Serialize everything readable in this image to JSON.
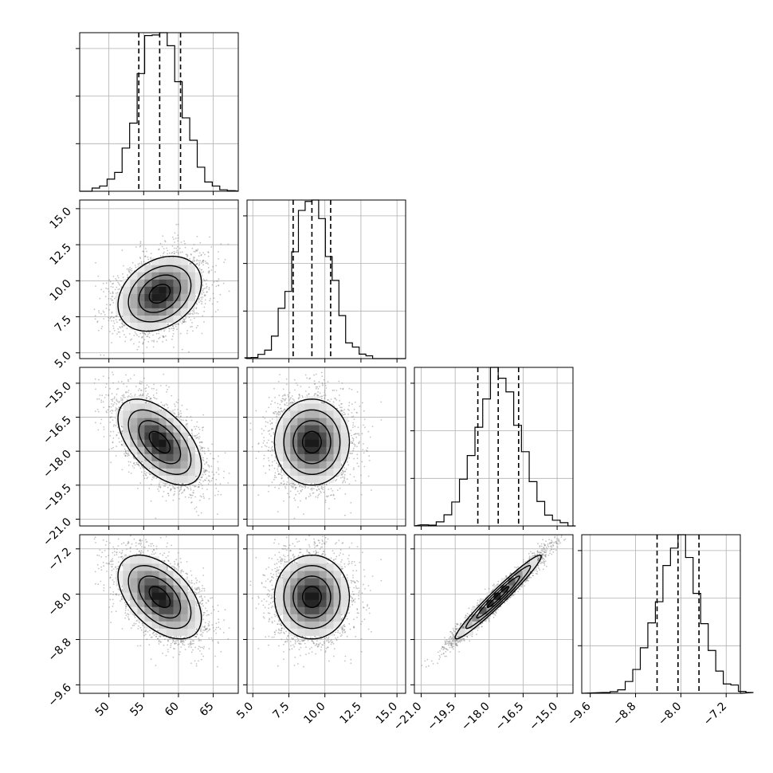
{
  "figure": {
    "type": "corner-plot",
    "colors": {
      "background": "#ffffff",
      "ink": "#000000",
      "grid": "#b0b0b0",
      "points": "#7a7a7a"
    }
  },
  "chart_data": {
    "type": "corner",
    "params": [
      {
        "ticks": [
          50,
          55,
          60,
          65
        ],
        "tick_labels": [
          "50",
          "55",
          "60",
          "65"
        ],
        "range": [
          45.8,
          68.6
        ],
        "mean": 57.3,
        "sd": 3.0,
        "quantiles": [
          54.3,
          57.3,
          60.3
        ]
      },
      {
        "ticks": [
          5.0,
          7.5,
          10.0,
          12.5,
          15.0
        ],
        "tick_labels": [
          "5.0",
          "7.5",
          "10.0",
          "12.5",
          "15.0"
        ],
        "range": [
          4.6,
          15.6
        ],
        "mean": 9.1,
        "sd": 1.3,
        "quantiles": [
          7.8,
          9.1,
          10.4
        ]
      },
      {
        "ticks": [
          -21.0,
          -19.5,
          -18.0,
          -16.5,
          -15.0
        ],
        "tick_labels": [
          "−21.0",
          "−19.5",
          "−18.0",
          "−16.5",
          "−15.0"
        ],
        "range": [
          -21.3,
          -14.3
        ],
        "mean": -17.6,
        "sd": 0.95,
        "quantiles": [
          -18.5,
          -17.6,
          -16.7
        ]
      },
      {
        "ticks": [
          -9.6,
          -8.8,
          -8.0,
          -7.2
        ],
        "tick_labels": [
          "−9.6",
          "−8.8",
          "−8.0",
          "−7.2"
        ],
        "range": [
          -9.75,
          -6.95
        ],
        "mean": -8.05,
        "sd": 0.37,
        "quantiles": [
          -8.42,
          -8.05,
          -7.68
        ]
      }
    ],
    "correlations": [
      {
        "pair": [
          0,
          1
        ],
        "rho": 0.3
      },
      {
        "pair": [
          0,
          2
        ],
        "rho": -0.55
      },
      {
        "pair": [
          1,
          2
        ],
        "rho": 0.0
      },
      {
        "pair": [
          0,
          3
        ],
        "rho": -0.5
      },
      {
        "pair": [
          1,
          3
        ],
        "rho": 0.0
      },
      {
        "pair": [
          2,
          3
        ],
        "rho": 0.97
      }
    ],
    "samples": 4000,
    "hist_bins": 20,
    "contour_levels_sigma": [
      0.5,
      1.0,
      1.5,
      2.0
    ],
    "grid": true,
    "axis_labels": [
      "",
      "",
      "",
      ""
    ]
  }
}
